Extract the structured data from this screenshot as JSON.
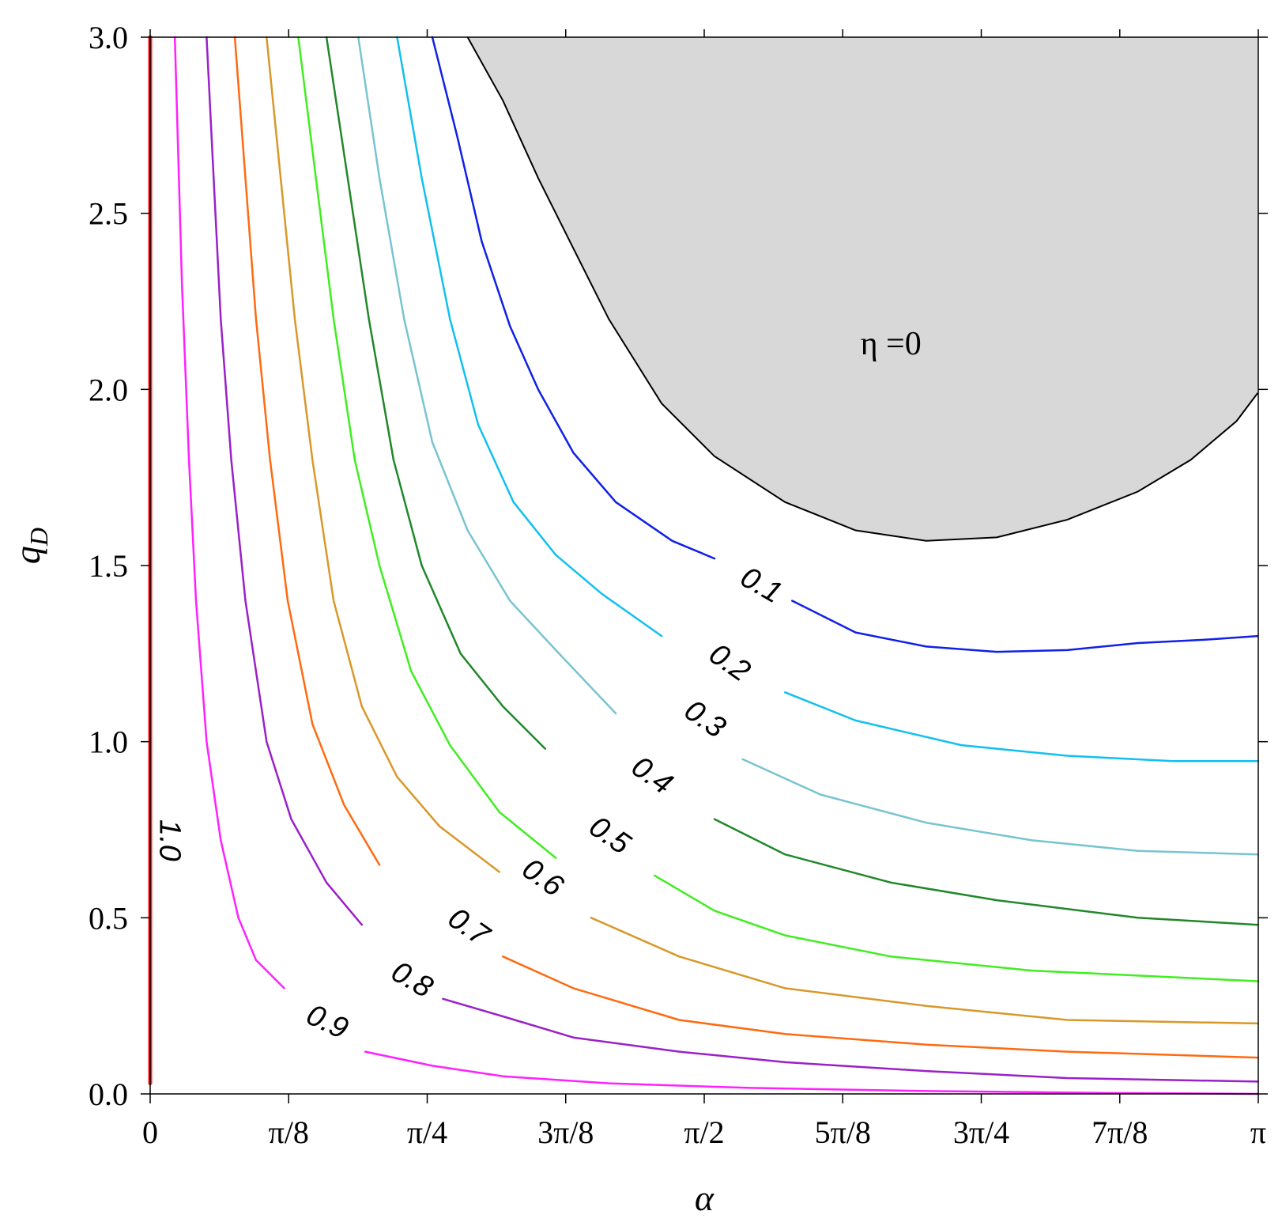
{
  "chart_data": {
    "type": "line",
    "xlabel": "α",
    "ylabel": "q",
    "ylabel_subscript": "D",
    "xlim": [
      0,
      3.14159
    ],
    "ylim": [
      0,
      3.0
    ],
    "x_ticks": [
      {
        "value": 0,
        "label": "0"
      },
      {
        "value": 0.3927,
        "label": "π/8"
      },
      {
        "value": 0.7854,
        "label": "π/4"
      },
      {
        "value": 1.1781,
        "label": "3π/8"
      },
      {
        "value": 1.5708,
        "label": "π/2"
      },
      {
        "value": 1.9635,
        "label": "5π/8"
      },
      {
        "value": 2.3562,
        "label": "3π/4"
      },
      {
        "value": 2.7489,
        "label": "7π/8"
      },
      {
        "value": 3.14159,
        "label": "π"
      }
    ],
    "y_ticks": [
      {
        "value": 0.0,
        "label": "0.0"
      },
      {
        "value": 0.5,
        "label": "0.5"
      },
      {
        "value": 1.0,
        "label": "1.0"
      },
      {
        "value": 1.5,
        "label": "1.5"
      },
      {
        "value": 2.0,
        "label": "2.0"
      },
      {
        "value": 2.5,
        "label": "2.5"
      },
      {
        "value": 3.0,
        "label": "3.0"
      }
    ],
    "region": {
      "label": "η =0",
      "label_pos": [
        2.1,
        2.1
      ],
      "fill": "#d8d8d8",
      "stroke": "#000000",
      "boundary": [
        [
          0.9,
          3.0
        ],
        [
          1.0,
          2.82
        ],
        [
          1.1,
          2.6
        ],
        [
          1.2,
          2.4
        ],
        [
          1.3,
          2.2
        ],
        [
          1.45,
          1.96
        ],
        [
          1.6,
          1.81
        ],
        [
          1.8,
          1.68
        ],
        [
          2.0,
          1.6
        ],
        [
          2.2,
          1.57
        ],
        [
          2.4,
          1.58
        ],
        [
          2.6,
          1.63
        ],
        [
          2.8,
          1.71
        ],
        [
          2.95,
          1.8
        ],
        [
          3.08,
          1.91
        ],
        [
          3.14,
          1.99
        ],
        [
          3.14,
          3.0
        ]
      ]
    },
    "series": [
      {
        "level": "1.0",
        "color": "#ff2020",
        "width": 5,
        "label_pos": [
          0.05,
          0.72
        ],
        "label_rot": 90,
        "points": [
          [
            0.0,
            0.03
          ],
          [
            0.0,
            3.0
          ]
        ]
      },
      {
        "level": "0.9",
        "color": "#ff20ff",
        "width": 2.5,
        "label_pos": [
          0.5,
          0.2
        ],
        "label_rot": 25,
        "points": [
          [
            0.07,
            3.0
          ],
          [
            0.09,
            2.3
          ],
          [
            0.11,
            1.8
          ],
          [
            0.13,
            1.4
          ],
          [
            0.16,
            1.0
          ],
          [
            0.2,
            0.72
          ],
          [
            0.25,
            0.5
          ],
          [
            0.3,
            0.38
          ],
          [
            0.38,
            0.3
          ],
          null,
          [
            0.61,
            0.12
          ],
          [
            0.8,
            0.08
          ],
          [
            1.0,
            0.05
          ],
          [
            1.3,
            0.03
          ],
          [
            1.7,
            0.017
          ],
          [
            2.2,
            0.008
          ],
          [
            2.7,
            0.003
          ],
          [
            3.14,
            0.0
          ]
        ]
      },
      {
        "level": "0.8",
        "color": "#9a20c8",
        "width": 2.5,
        "label_pos": [
          0.74,
          0.32
        ],
        "label_rot": 30,
        "points": [
          [
            0.16,
            3.0
          ],
          [
            0.18,
            2.6
          ],
          [
            0.2,
            2.2
          ],
          [
            0.23,
            1.8
          ],
          [
            0.27,
            1.4
          ],
          [
            0.33,
            1.0
          ],
          [
            0.4,
            0.78
          ],
          [
            0.5,
            0.6
          ],
          [
            0.6,
            0.48
          ],
          null,
          [
            0.83,
            0.27
          ],
          [
            1.0,
            0.22
          ],
          [
            1.2,
            0.16
          ],
          [
            1.5,
            0.12
          ],
          [
            1.8,
            0.09
          ],
          [
            2.2,
            0.065
          ],
          [
            2.6,
            0.045
          ],
          [
            3.14,
            0.035
          ]
        ]
      },
      {
        "level": "0.7",
        "color": "#ff6a10",
        "width": 2.5,
        "label_pos": [
          0.9,
          0.47
        ],
        "label_rot": 35,
        "points": [
          [
            0.24,
            3.0
          ],
          [
            0.27,
            2.6
          ],
          [
            0.3,
            2.2
          ],
          [
            0.34,
            1.8
          ],
          [
            0.39,
            1.4
          ],
          [
            0.46,
            1.05
          ],
          [
            0.55,
            0.82
          ],
          [
            0.65,
            0.65
          ],
          null,
          [
            1.0,
            0.39
          ],
          [
            1.2,
            0.3
          ],
          [
            1.5,
            0.21
          ],
          [
            1.8,
            0.17
          ],
          [
            2.2,
            0.14
          ],
          [
            2.6,
            0.12
          ],
          [
            3.14,
            0.103
          ]
        ]
      },
      {
        "level": "0.6",
        "color": "#d8982a",
        "width": 2.5,
        "label_pos": [
          1.11,
          0.61
        ],
        "label_rot": 35,
        "points": [
          [
            0.33,
            3.0
          ],
          [
            0.37,
            2.6
          ],
          [
            0.41,
            2.2
          ],
          [
            0.46,
            1.8
          ],
          [
            0.52,
            1.4
          ],
          [
            0.6,
            1.1
          ],
          [
            0.7,
            0.9
          ],
          [
            0.82,
            0.76
          ],
          [
            0.99,
            0.63
          ],
          null,
          [
            1.25,
            0.5
          ],
          [
            1.5,
            0.39
          ],
          [
            1.8,
            0.3
          ],
          [
            2.2,
            0.25
          ],
          [
            2.6,
            0.21
          ],
          [
            3.14,
            0.2
          ]
        ]
      },
      {
        "level": "0.5",
        "color": "#40ee20",
        "width": 2.5,
        "label_pos": [
          1.3,
          0.73
        ],
        "label_rot": 35,
        "points": [
          [
            0.42,
            3.0
          ],
          [
            0.47,
            2.6
          ],
          [
            0.52,
            2.2
          ],
          [
            0.58,
            1.8
          ],
          [
            0.65,
            1.5
          ],
          [
            0.74,
            1.2
          ],
          [
            0.85,
            0.99
          ],
          [
            0.99,
            0.8
          ],
          [
            1.15,
            0.67
          ],
          null,
          [
            1.43,
            0.62
          ],
          [
            1.6,
            0.52
          ],
          [
            1.8,
            0.45
          ],
          [
            2.1,
            0.39
          ],
          [
            2.5,
            0.35
          ],
          [
            3.14,
            0.32
          ]
        ]
      },
      {
        "level": "0.4",
        "color": "#20882a",
        "width": 2.5,
        "label_pos": [
          1.42,
          0.9
        ],
        "label_rot": 35,
        "points": [
          [
            0.5,
            3.0
          ],
          [
            0.56,
            2.6
          ],
          [
            0.62,
            2.2
          ],
          [
            0.69,
            1.8
          ],
          [
            0.77,
            1.5
          ],
          [
            0.88,
            1.25
          ],
          [
            1.0,
            1.1
          ],
          [
            1.12,
            0.98
          ],
          null,
          [
            1.6,
            0.78
          ],
          [
            1.8,
            0.68
          ],
          [
            2.1,
            0.6
          ],
          [
            2.4,
            0.55
          ],
          [
            2.8,
            0.5
          ],
          [
            3.14,
            0.48
          ]
        ]
      },
      {
        "level": "0.3",
        "color": "#78c4d0",
        "width": 2.5,
        "label_pos": [
          1.57,
          1.06
        ],
        "label_rot": 35,
        "points": [
          [
            0.59,
            3.0
          ],
          [
            0.65,
            2.6
          ],
          [
            0.72,
            2.2
          ],
          [
            0.8,
            1.85
          ],
          [
            0.9,
            1.6
          ],
          [
            1.02,
            1.4
          ],
          [
            1.15,
            1.26
          ],
          [
            1.32,
            1.08
          ],
          null,
          [
            1.68,
            0.95
          ],
          [
            1.9,
            0.85
          ],
          [
            2.2,
            0.77
          ],
          [
            2.5,
            0.72
          ],
          [
            2.8,
            0.69
          ],
          [
            3.14,
            0.68
          ]
        ]
      },
      {
        "level": "0.2",
        "color": "#10c0f0",
        "width": 2.5,
        "label_pos": [
          1.64,
          1.22
        ],
        "label_rot": 35,
        "points": [
          [
            0.7,
            3.0
          ],
          [
            0.77,
            2.6
          ],
          [
            0.85,
            2.2
          ],
          [
            0.93,
            1.9
          ],
          [
            1.03,
            1.68
          ],
          [
            1.15,
            1.53
          ],
          [
            1.28,
            1.42
          ],
          [
            1.45,
            1.3
          ],
          null,
          [
            1.8,
            1.14
          ],
          [
            2.0,
            1.06
          ],
          [
            2.3,
            0.99
          ],
          [
            2.6,
            0.96
          ],
          [
            2.9,
            0.945
          ],
          [
            3.14,
            0.945
          ]
        ]
      },
      {
        "level": "0.1",
        "color": "#1020e8",
        "width": 2.5,
        "label_pos": [
          1.73,
          1.44
        ],
        "label_rot": 30,
        "points": [
          [
            0.8,
            3.0
          ],
          [
            0.87,
            2.72
          ],
          [
            0.94,
            2.42
          ],
          [
            1.02,
            2.18
          ],
          [
            1.1,
            2.0
          ],
          [
            1.2,
            1.82
          ],
          [
            1.32,
            1.68
          ],
          [
            1.48,
            1.57
          ],
          [
            1.6,
            1.52
          ],
          null,
          [
            1.82,
            1.4
          ],
          [
            2.0,
            1.31
          ],
          [
            2.2,
            1.27
          ],
          [
            2.4,
            1.255
          ],
          [
            2.6,
            1.26
          ],
          [
            2.8,
            1.28
          ],
          [
            3.0,
            1.29
          ],
          [
            3.14,
            1.3
          ]
        ]
      }
    ]
  }
}
